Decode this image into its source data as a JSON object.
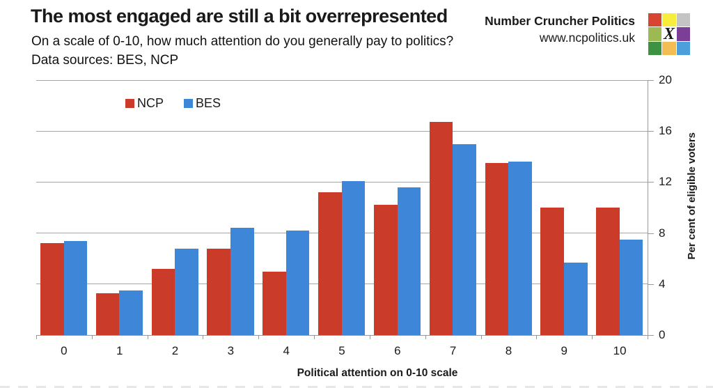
{
  "header": {
    "title": "The most engaged are still a bit overrepresented",
    "subtitle_line1": "On a scale of 0-10, how much attention do you generally pay to politics?",
    "subtitle_line2": "Data sources: BES, NCP",
    "brand_name": "Number Cruncher Politics",
    "brand_url": "www.ncpolitics.uk",
    "logo": {
      "grid_colors": [
        [
          "#d5452f",
          "#f6ee3b",
          "#c4c4c4"
        ],
        [
          "#9db954",
          "#ffffff",
          "#7b3f98"
        ],
        [
          "#3d9341",
          "#f3bd55",
          "#4c9fda"
        ]
      ],
      "center_glyph": "X"
    }
  },
  "chart_data": {
    "type": "bar",
    "title": "",
    "categories": [
      "0",
      "1",
      "2",
      "3",
      "4",
      "5",
      "6",
      "7",
      "8",
      "9",
      "10"
    ],
    "series": [
      {
        "name": "NCP",
        "color": "#ca3b2a",
        "values": [
          7.2,
          3.3,
          5.2,
          6.8,
          5.0,
          11.2,
          10.2,
          16.7,
          13.5,
          10.0,
          10.0
        ]
      },
      {
        "name": "BES",
        "color": "#3e86d8",
        "values": [
          7.4,
          3.5,
          6.8,
          8.4,
          8.2,
          12.1,
          11.6,
          15.0,
          13.6,
          5.7,
          7.5
        ]
      }
    ],
    "xlabel": "Political attention on 0-10 scale",
    "ylabel": "Per cent of eligible voters",
    "ylim": [
      0,
      20
    ],
    "yticks": [
      0,
      4,
      8,
      12,
      16,
      20
    ],
    "grid": "horizontal",
    "gridline_color": "#a6a6a6",
    "legend_position": "top-left-inside",
    "value_axis_side": "right"
  }
}
